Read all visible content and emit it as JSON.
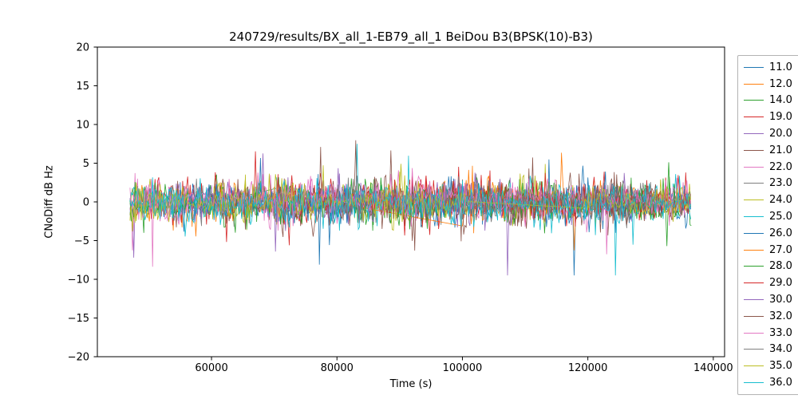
{
  "chart_data": {
    "type": "line",
    "title": "240729/results/BX_all_1-EB79_all_1 BeiDou B3(BPSK(10)-B3)",
    "xlabel": "Time (s)",
    "ylabel": "CNoDiff dB Hz",
    "xlim": [
      41800,
      141800
    ],
    "ylim": [
      -20,
      20
    ],
    "xticks": [
      60000,
      80000,
      100000,
      120000,
      140000
    ],
    "yticks": [
      -20,
      -15,
      -10,
      -5,
      0,
      5,
      10,
      15,
      20
    ],
    "grid": false,
    "legend_position": "right-outside",
    "observed": {
      "x_data_range": [
        47000,
        136500
      ],
      "typical_band": [
        -3,
        3
      ],
      "extreme_values": [
        -9.5,
        9.3
      ],
      "baseline": 0
    },
    "series": [
      {
        "name": "11.0",
        "color": "#1f77b4",
        "seed": 11,
        "std": 1.0,
        "segments": [
          [
            47000,
            136500
          ]
        ]
      },
      {
        "name": "12.0",
        "color": "#ff7f0e",
        "seed": 12,
        "std": 1.1,
        "segments": [
          [
            47500,
            71000
          ],
          [
            96000,
            136000
          ]
        ]
      },
      {
        "name": "14.0",
        "color": "#2ca02c",
        "seed": 14,
        "std": 1.2,
        "segments": [
          [
            47000,
            63000
          ],
          [
            70500,
            136500
          ]
        ]
      },
      {
        "name": "19.0",
        "color": "#d62728",
        "seed": 19,
        "std": 1.1,
        "segments": [
          [
            48000,
            136500
          ]
        ]
      },
      {
        "name": "20.0",
        "color": "#9467bd",
        "seed": 20,
        "std": 1.0,
        "segments": [
          [
            47000,
            136000
          ]
        ]
      },
      {
        "name": "21.0",
        "color": "#8c564b",
        "seed": 21,
        "std": 1.2,
        "segments": [
          [
            50000,
            135500
          ]
        ]
      },
      {
        "name": "22.0",
        "color": "#e377c2",
        "seed": 22,
        "std": 1.0,
        "segments": [
          [
            47000,
            57000
          ],
          [
            63000,
            136500
          ]
        ]
      },
      {
        "name": "23.0",
        "color": "#7f7f7f",
        "seed": 23,
        "std": 0.9,
        "segments": [
          [
            52000,
            130500
          ]
        ]
      },
      {
        "name": "24.0",
        "color": "#bcbd22",
        "seed": 24,
        "std": 1.1,
        "segments": [
          [
            47000,
            121000
          ]
        ]
      },
      {
        "name": "25.0",
        "color": "#17becf",
        "seed": 25,
        "std": 1.0,
        "segments": [
          [
            47000,
            136500
          ]
        ]
      },
      {
        "name": "26.0",
        "color": "#1f77b4",
        "seed": 26,
        "std": 1.1,
        "segments": [
          [
            55000,
            136500
          ]
        ]
      },
      {
        "name": "27.0",
        "color": "#ff7f0e",
        "seed": 27,
        "std": 1.2,
        "segments": [
          [
            61000,
            72500
          ],
          [
            100000,
            116000
          ]
        ]
      },
      {
        "name": "28.0",
        "color": "#2ca02c",
        "seed": 28,
        "std": 1.0,
        "segments": [
          [
            47000,
            136500
          ]
        ]
      },
      {
        "name": "29.0",
        "color": "#d62728",
        "seed": 29,
        "std": 1.1,
        "segments": [
          [
            70000,
            136500
          ]
        ]
      },
      {
        "name": "30.0",
        "color": "#9467bd",
        "seed": 30,
        "std": 1.0,
        "segments": [
          [
            47000,
            111000
          ]
        ]
      },
      {
        "name": "32.0",
        "color": "#8c564b",
        "seed": 32,
        "std": 1.2,
        "segments": [
          [
            60000,
            136500
          ]
        ]
      },
      {
        "name": "33.0",
        "color": "#e377c2",
        "seed": 33,
        "std": 1.1,
        "segments": [
          [
            47000,
            136500
          ]
        ]
      },
      {
        "name": "34.0",
        "color": "#7f7f7f",
        "seed": 34,
        "std": 0.9,
        "segments": [
          [
            80000,
            136000
          ]
        ]
      },
      {
        "name": "35.0",
        "color": "#bcbd22",
        "seed": 35,
        "std": 1.0,
        "segments": [
          [
            47000,
            101000
          ],
          [
            119000,
            136500
          ]
        ]
      },
      {
        "name": "36.0",
        "color": "#17becf",
        "seed": 36,
        "std": 1.0,
        "segments": [
          [
            47000,
            136500
          ]
        ]
      }
    ]
  }
}
